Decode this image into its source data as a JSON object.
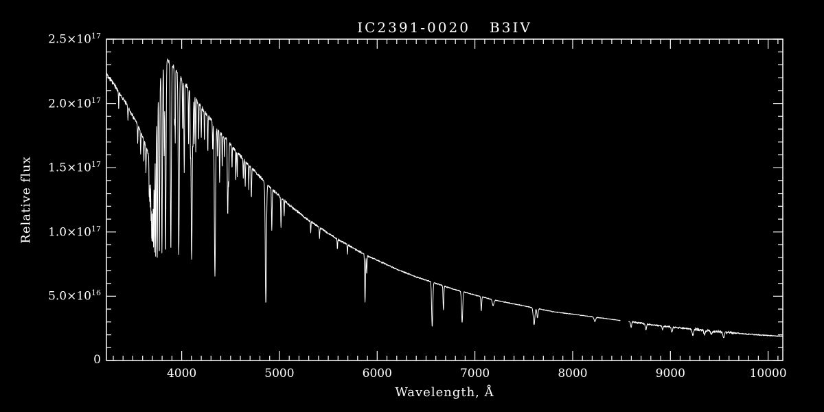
{
  "figure": {
    "background": "#000000",
    "line_color": "#ffffff",
    "axis_color": "#ffffff",
    "text_color": "#ffffff"
  },
  "chart_data": {
    "type": "line",
    "title": "IC2391-0020   B3IV",
    "xlabel": "Wavelength, Å",
    "ylabel": "Relative flux",
    "xlim": [
      3230,
      10150
    ],
    "ylim": [
      0,
      2.5e+17
    ],
    "x_minor_step": 100,
    "x_major_step": 1000,
    "y_minor_step": 1e+16,
    "y_major_every": 5,
    "x_ticks": [
      {
        "value": 4000,
        "label": "4000"
      },
      {
        "value": 5000,
        "label": "5000"
      },
      {
        "value": 6000,
        "label": "6000"
      },
      {
        "value": 7000,
        "label": "7000"
      },
      {
        "value": 8000,
        "label": "8000"
      },
      {
        "value": 9000,
        "label": "9000"
      },
      {
        "value": 10000,
        "label": "10000"
      }
    ],
    "y_ticks": [
      {
        "value": 0,
        "label": "0"
      },
      {
        "value": 5e+16,
        "mantissa": "5.0×10",
        "exp": "16"
      },
      {
        "value": 1e+17,
        "mantissa": "1.0×10",
        "exp": "17"
      },
      {
        "value": 1.5e+17,
        "mantissa": "1.5×10",
        "exp": "17"
      },
      {
        "value": 2e+17,
        "mantissa": "2.0×10",
        "exp": "17"
      },
      {
        "value": 2.5e+17,
        "mantissa": "2.5×10",
        "exp": "17"
      }
    ],
    "series": [
      {
        "name": "spectrum",
        "sample_step": 2,
        "continuum_anchors": [
          [
            3230,
            2.23e+17
          ],
          [
            3280,
            2.18e+17
          ],
          [
            3330,
            2.12e+17
          ],
          [
            3380,
            2.06e+17
          ],
          [
            3430,
            2e+17
          ],
          [
            3480,
            1.93e+17
          ],
          [
            3530,
            1.86e+17
          ],
          [
            3580,
            1.78e+17
          ],
          [
            3630,
            1.68e+17
          ],
          [
            3660,
            1.6e+17
          ],
          [
            3690,
            1.62e+17
          ],
          [
            3720,
            1.78e+17
          ],
          [
            3750,
            2e+17
          ],
          [
            3780,
            2.2e+17
          ],
          [
            3810,
            2.3e+17
          ],
          [
            3850,
            2.34e+17
          ],
          [
            3900,
            2.3e+17
          ],
          [
            3950,
            2.25e+17
          ],
          [
            4000,
            2.19e+17
          ],
          [
            4100,
            2.08e+17
          ],
          [
            4200,
            1.97e+17
          ],
          [
            4300,
            1.87e+17
          ],
          [
            4400,
            1.77e+17
          ],
          [
            4500,
            1.68e+17
          ],
          [
            4600,
            1.59e+17
          ],
          [
            4700,
            1.51e+17
          ],
          [
            4800,
            1.43e+17
          ],
          [
            4900,
            1.35e+17
          ],
          [
            5000,
            1.28e+17
          ],
          [
            5100,
            1.21e+17
          ],
          [
            5200,
            1.15e+17
          ],
          [
            5300,
            1.09e+17
          ],
          [
            5400,
            1.04e+17
          ],
          [
            5500,
            9.9e+16
          ],
          [
            5600,
            9.4e+16
          ],
          [
            5700,
            9e+16
          ],
          [
            5800,
            8.55e+16
          ],
          [
            5900,
            8.15e+16
          ],
          [
            6000,
            7.8e+16
          ],
          [
            6100,
            7.45e+16
          ],
          [
            6200,
            7.1e+16
          ],
          [
            6300,
            6.8e+16
          ],
          [
            6400,
            6.5e+16
          ],
          [
            6500,
            6.25e+16
          ],
          [
            6600,
            6e+16
          ],
          [
            6700,
            5.75e+16
          ],
          [
            6800,
            5.5e+16
          ],
          [
            6900,
            5.3e+16
          ],
          [
            7000,
            5.1e+16
          ],
          [
            7100,
            4.9e+16
          ],
          [
            7200,
            4.7e+16
          ],
          [
            7300,
            4.55e+16
          ],
          [
            7400,
            4.4e+16
          ],
          [
            7500,
            4.25e+16
          ],
          [
            7600,
            4.1e+16
          ],
          [
            7700,
            3.95e+16
          ],
          [
            7800,
            3.8e+16
          ],
          [
            7900,
            3.7e+16
          ],
          [
            8000,
            3.6e+16
          ],
          [
            8100,
            3.5e+16
          ],
          [
            8200,
            3.4e+16
          ],
          [
            8300,
            3.3e+16
          ],
          [
            8400,
            3.2e+16
          ],
          [
            8500,
            3.1e+16
          ],
          [
            8600,
            3e+16
          ],
          [
            8700,
            2.9e+16
          ],
          [
            8800,
            2.8e+16
          ],
          [
            8900,
            2.7e+16
          ],
          [
            9000,
            2.62e+16
          ],
          [
            9100,
            2.54e+16
          ],
          [
            9200,
            2.46e+16
          ],
          [
            9300,
            2.38e+16
          ],
          [
            9400,
            2.31e+16
          ],
          [
            9500,
            2.24e+16
          ],
          [
            9600,
            2.17e+16
          ],
          [
            9700,
            2.11e+16
          ],
          [
            9800,
            2.05e+16
          ],
          [
            9900,
            2e+16
          ],
          [
            10000,
            1.95e+16
          ],
          [
            10150,
            1.88e+16
          ]
        ],
        "absorption_lines": [
          [
            3355,
            0.07,
            2.2
          ],
          [
            3450,
            0.06,
            2
          ],
          [
            3550,
            0.08,
            2.3
          ],
          [
            3580,
            0.1,
            2.4
          ],
          [
            3613,
            0.1,
            2.4
          ],
          [
            3634,
            0.12,
            2.4
          ],
          [
            3667,
            0.22,
            2
          ],
          [
            3673,
            0.25,
            2
          ],
          [
            3679,
            0.28,
            2
          ],
          [
            3686,
            0.32,
            2.2
          ],
          [
            3692,
            0.36,
            2.2
          ],
          [
            3697,
            0.4,
            2.4
          ],
          [
            3704,
            0.44,
            2.6
          ],
          [
            3712,
            0.49,
            2.8
          ],
          [
            3722,
            0.53,
            3
          ],
          [
            3734,
            0.57,
            3.2
          ],
          [
            3750,
            0.6,
            3.5
          ],
          [
            3771,
            0.62,
            4
          ],
          [
            3798,
            0.63,
            4.5
          ],
          [
            3820,
            0.3,
            3
          ],
          [
            3835,
            0.64,
            5
          ],
          [
            3889,
            0.63,
            5
          ],
          [
            3927,
            0.2,
            2.5
          ],
          [
            3934,
            0.25,
            2.5
          ],
          [
            3970,
            0.63,
            5.5
          ],
          [
            4009,
            0.18,
            2.5
          ],
          [
            4026,
            0.32,
            3.5
          ],
          [
            4070,
            0.2,
            2.5
          ],
          [
            4089,
            0.18,
            2.5
          ],
          [
            4102,
            0.62,
            6
          ],
          [
            4116,
            0.15,
            2.5
          ],
          [
            4128,
            0.18,
            2.5
          ],
          [
            4144,
            0.2,
            2.5
          ],
          [
            4173,
            0.15,
            2.5
          ],
          [
            4200,
            0.12,
            2.5
          ],
          [
            4233,
            0.12,
            2.5
          ],
          [
            4267,
            0.15,
            2.5
          ],
          [
            4317,
            0.12,
            2.5
          ],
          [
            4340,
            0.64,
            6
          ],
          [
            4367,
            0.12,
            2.5
          ],
          [
            4388,
            0.22,
            3
          ],
          [
            4415,
            0.15,
            2.5
          ],
          [
            4437,
            0.1,
            2
          ],
          [
            4471,
            0.34,
            4
          ],
          [
            4481,
            0.18,
            3
          ],
          [
            4515,
            0.1,
            2.5
          ],
          [
            4553,
            0.15,
            2.5
          ],
          [
            4568,
            0.12,
            2.5
          ],
          [
            4630,
            0.1,
            2.5
          ],
          [
            4650,
            0.12,
            2.5
          ],
          [
            4686,
            0.12,
            2.5
          ],
          [
            4713,
            0.16,
            3
          ],
          [
            4861,
            0.68,
            6
          ],
          [
            4922,
            0.24,
            3.5
          ],
          [
            5016,
            0.18,
            3
          ],
          [
            5048,
            0.1,
            2.5
          ],
          [
            5320,
            0.08,
            2.5
          ],
          [
            5410,
            0.08,
            2.5
          ],
          [
            5593,
            0.08,
            2.5
          ],
          [
            5696,
            0.08,
            2.5
          ],
          [
            5876,
            0.45,
            4
          ],
          [
            5893,
            0.18,
            3
          ],
          [
            6563,
            0.57,
            6
          ],
          [
            6678,
            0.32,
            4
          ],
          [
            6869,
            0.45,
            6
          ],
          [
            7065,
            0.22,
            4
          ],
          [
            7186,
            0.1,
            8
          ],
          [
            7605,
            0.32,
            8
          ],
          [
            7640,
            0.18,
            6
          ],
          [
            8227,
            0.1,
            8
          ],
          [
            8598,
            0.14,
            5
          ],
          [
            8750,
            0.16,
            6
          ],
          [
            8920,
            0.1,
            6
          ],
          [
            9015,
            0.16,
            6
          ],
          [
            9229,
            0.2,
            7
          ],
          [
            9350,
            0.12,
            8
          ],
          [
            9420,
            0.1,
            8
          ],
          [
            9546,
            0.22,
            7
          ]
        ],
        "gaps": [
          [
            8490,
            8570
          ]
        ],
        "noise": {
          "seed": 42,
          "zones": [
            {
              "from": 3230,
              "to": 8600,
              "amp": 0.006
            },
            {
              "from": 8600,
              "to": 9200,
              "amp": 0.02
            },
            {
              "from": 9200,
              "to": 9650,
              "amp": 0.035
            },
            {
              "from": 9650,
              "to": 10150,
              "amp": 0.018
            }
          ]
        }
      }
    ]
  }
}
